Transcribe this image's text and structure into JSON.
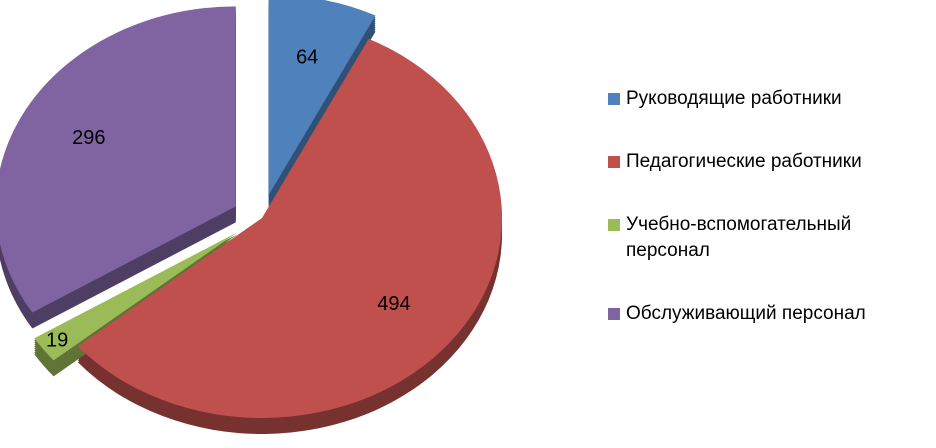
{
  "chart_data": {
    "type": "pie",
    "categories": [
      "Руководящие работники",
      "Педагогические работники",
      "Учебно-вспомогательный персонал",
      "Обслуживающий персонал"
    ],
    "values": [
      64,
      494,
      19,
      296
    ],
    "colors": [
      "#4f81bd",
      "#c0504d",
      "#9bbb59",
      "#8064a2"
    ],
    "legend": "right"
  }
}
